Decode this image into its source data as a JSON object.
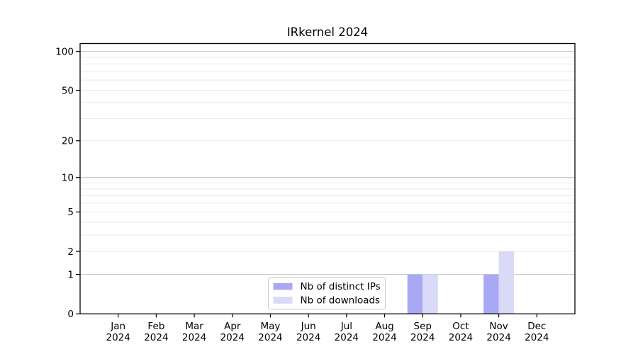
{
  "figure": {
    "title": "IRkernel 2024"
  },
  "chart_data": {
    "type": "bar",
    "title": "IRkernel 2024",
    "categories": [
      "Jan",
      "Feb",
      "Mar",
      "Apr",
      "May",
      "Jun",
      "Jul",
      "Aug",
      "Sep",
      "Oct",
      "Nov",
      "Dec"
    ],
    "year_label": "2024",
    "series": [
      {
        "name": "Nb of distinct IPs",
        "color": "#a9a9f3",
        "values": [
          0,
          0,
          0,
          0,
          0,
          0,
          0,
          0,
          1,
          0,
          1,
          0
        ]
      },
      {
        "name": "Nb of downloads",
        "color": "#d9d9f8",
        "values": [
          0,
          0,
          0,
          0,
          0,
          0,
          0,
          0,
          1,
          0,
          2,
          0
        ]
      }
    ],
    "y_axis": {
      "scale": "log1p",
      "tick_values": [
        0,
        1,
        2,
        5,
        10,
        20,
        50,
        100
      ],
      "max_value": 115,
      "grid_major_values": [
        1,
        10,
        100
      ],
      "grid_minor_values": [
        2,
        3,
        4,
        5,
        6,
        7,
        8,
        9,
        20,
        30,
        40,
        50,
        60,
        70,
        80,
        90
      ]
    },
    "legend": {
      "position": "bottom-center",
      "entries": [
        "Nb of distinct IPs",
        "Nb of downloads"
      ]
    },
    "grid": true,
    "xlabel": "",
    "ylabel": ""
  },
  "colors": {
    "background": "#ffffff",
    "bar_distinct_ips": "#a9a9f3",
    "bar_downloads": "#d9d9f8",
    "grid_major": "#c2c2c2",
    "grid_minor": "#e9e9e9",
    "axis": "#000000",
    "text": "#000000",
    "legend_border": "#cccccc",
    "legend_background": "#ffffff"
  }
}
